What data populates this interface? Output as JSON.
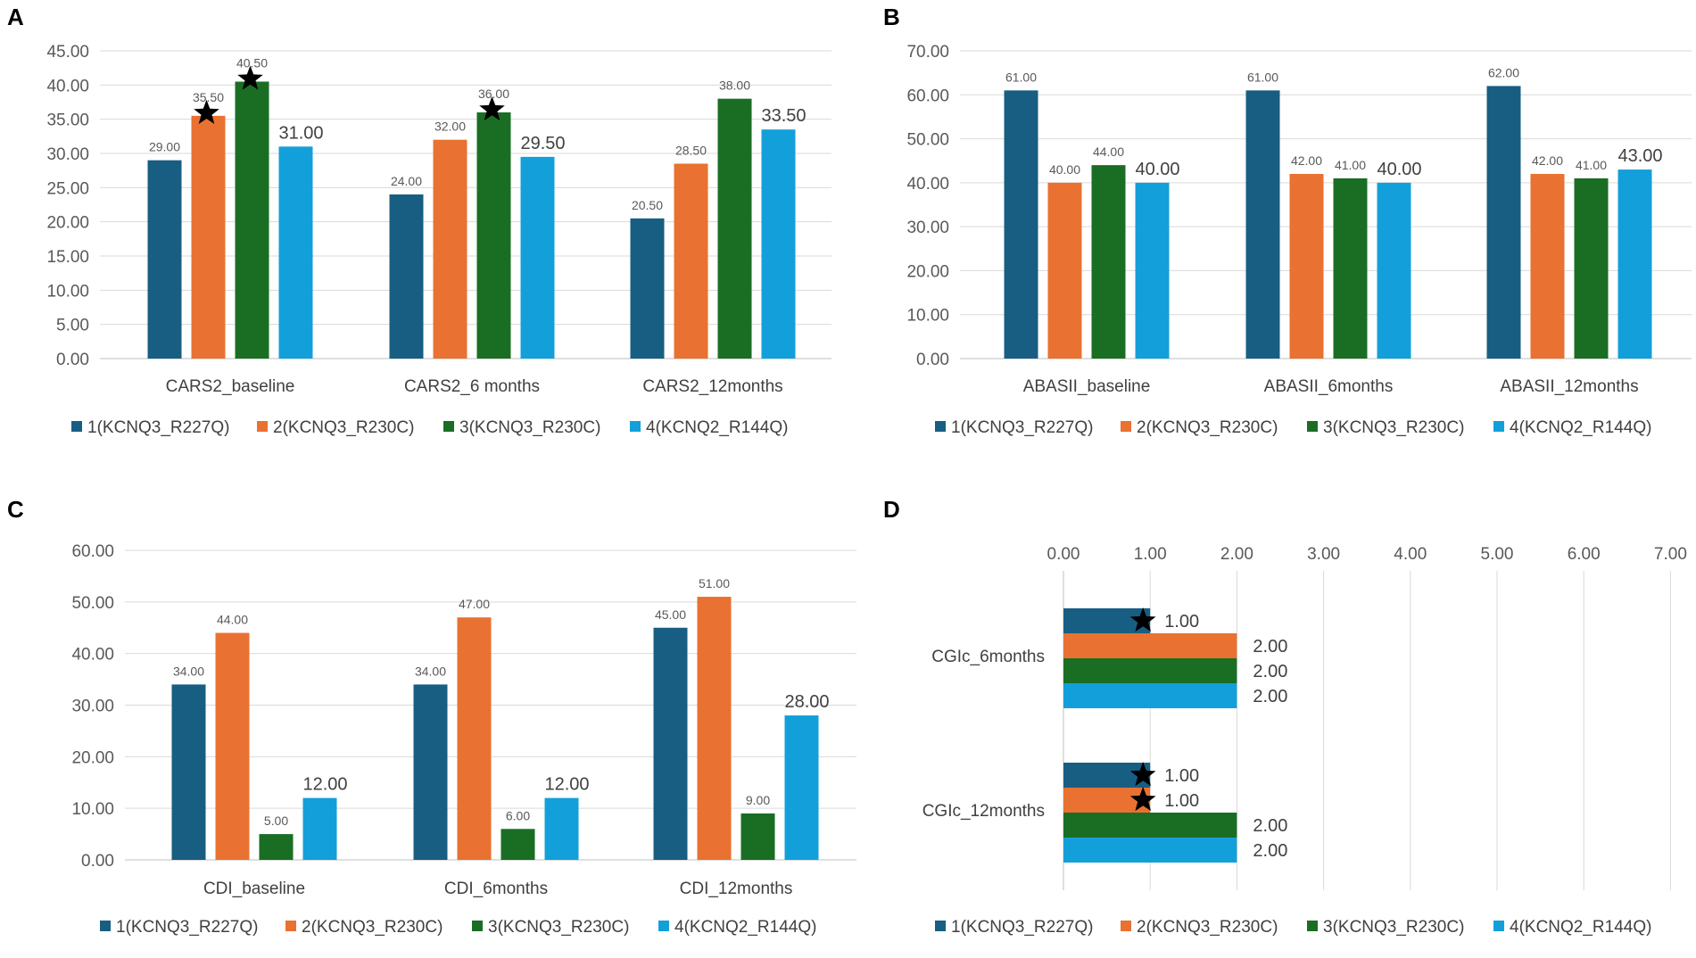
{
  "chart_data": [
    {
      "panel": "A",
      "type": "bar",
      "orientation": "vertical",
      "categories": [
        "CARS2_baseline",
        "CARS2_6 months",
        "CARS2_12months"
      ],
      "series": [
        {
          "name": "1(KCNQ3_R227Q)",
          "values": [
            29.0,
            24.0,
            20.5
          ],
          "labels": [
            "29.00",
            "24.00",
            "20.50"
          ]
        },
        {
          "name": "2(KCNQ3_R230C)",
          "values": [
            35.5,
            32.0,
            28.5
          ],
          "labels": [
            "35.50",
            "32.00",
            "28.50"
          ]
        },
        {
          "name": "3(KCNQ3_R230C)",
          "values": [
            40.5,
            36.0,
            38.0
          ],
          "labels": [
            "40.50",
            "36.00",
            "38.00"
          ]
        },
        {
          "name": "4(KCNQ2_R144Q)",
          "values": [
            31.0,
            29.5,
            33.5
          ],
          "labels": [
            "31.00",
            "29.50",
            "33.50"
          ]
        }
      ],
      "stars": [
        [
          0,
          1
        ],
        [
          0,
          2
        ],
        [
          1,
          2
        ]
      ],
      "ylim": [
        0,
        45
      ],
      "yticks": [
        "0.00",
        "5.00",
        "10.00",
        "15.00",
        "20.00",
        "25.00",
        "30.00",
        "35.00",
        "40.00",
        "45.00"
      ],
      "grid": true,
      "legend": "bottom"
    },
    {
      "panel": "B",
      "type": "bar",
      "orientation": "vertical",
      "categories": [
        "ABASII_baseline",
        "ABASII_6months",
        "ABASII_12months"
      ],
      "series": [
        {
          "name": "1(KCNQ3_R227Q)",
          "values": [
            61.0,
            61.0,
            62.0
          ],
          "labels": [
            "61.00",
            "61.00",
            "62.00"
          ]
        },
        {
          "name": "2(KCNQ3_R230C)",
          "values": [
            40.0,
            42.0,
            42.0
          ],
          "labels": [
            "40.00",
            "42.00",
            "42.00"
          ]
        },
        {
          "name": "3(KCNQ3_R230C)",
          "values": [
            44.0,
            41.0,
            41.0
          ],
          "labels": [
            "44.00",
            "41.00",
            "41.00"
          ]
        },
        {
          "name": "4(KCNQ2_R144Q)",
          "values": [
            40.0,
            40.0,
            43.0
          ],
          "labels": [
            "40.00",
            "40.00",
            "43.00"
          ]
        }
      ],
      "stars": [],
      "ylim": [
        0,
        70
      ],
      "yticks": [
        "0.00",
        "10.00",
        "20.00",
        "30.00",
        "40.00",
        "50.00",
        "60.00",
        "70.00"
      ],
      "grid": true,
      "legend": "bottom"
    },
    {
      "panel": "C",
      "type": "bar",
      "orientation": "vertical",
      "categories": [
        "CDI_baseline",
        "CDI_6months",
        "CDI_12months"
      ],
      "series": [
        {
          "name": "1(KCNQ3_R227Q)",
          "values": [
            34.0,
            34.0,
            45.0
          ],
          "labels": [
            "34.00",
            "34.00",
            "45.00"
          ]
        },
        {
          "name": "2(KCNQ3_R230C)",
          "values": [
            44.0,
            47.0,
            51.0
          ],
          "labels": [
            "44.00",
            "47.00",
            "51.00"
          ]
        },
        {
          "name": "3(KCNQ3_R230C)",
          "values": [
            5.0,
            6.0,
            9.0
          ],
          "labels": [
            "5.00",
            "6.00",
            "9.00"
          ]
        },
        {
          "name": "4(KCNQ2_R144Q)",
          "values": [
            12.0,
            12.0,
            28.0
          ],
          "labels": [
            "12.00",
            "12.00",
            "28.00"
          ]
        }
      ],
      "stars": [],
      "ylim": [
        0,
        60
      ],
      "yticks": [
        "0.00",
        "10.00",
        "20.00",
        "30.00",
        "40.00",
        "50.00",
        "60.00"
      ],
      "grid": true,
      "legend": "bottom"
    },
    {
      "panel": "D",
      "type": "bar",
      "orientation": "horizontal",
      "categories": [
        "CGIc_6months",
        "CGIc_12months"
      ],
      "series": [
        {
          "name": "1(KCNQ3_R227Q)",
          "values": [
            1.0,
            1.0
          ],
          "labels": [
            "1.00",
            "1.00"
          ]
        },
        {
          "name": "2(KCNQ3_R230C)",
          "values": [
            2.0,
            1.0
          ],
          "labels": [
            "2.00",
            "1.00"
          ]
        },
        {
          "name": "3(KCNQ3_R230C)",
          "values": [
            2.0,
            2.0
          ],
          "labels": [
            "2.00",
            "2.00"
          ]
        },
        {
          "name": "4(KCNQ2_R144Q)",
          "values": [
            2.0,
            2.0
          ],
          "labels": [
            "2.00",
            "2.00"
          ]
        }
      ],
      "stars": [
        [
          0,
          0
        ],
        [
          1,
          0
        ],
        [
          1,
          1
        ]
      ],
      "xlim": [
        0,
        7
      ],
      "xticks": [
        "0.00",
        "1.00",
        "2.00",
        "3.00",
        "4.00",
        "5.00",
        "6.00",
        "7.00"
      ],
      "grid": true,
      "legend": "bottom"
    }
  ],
  "colors": [
    "#185e82",
    "#e97131",
    "#1a6e24",
    "#13a0da"
  ],
  "star_color": "#000000"
}
